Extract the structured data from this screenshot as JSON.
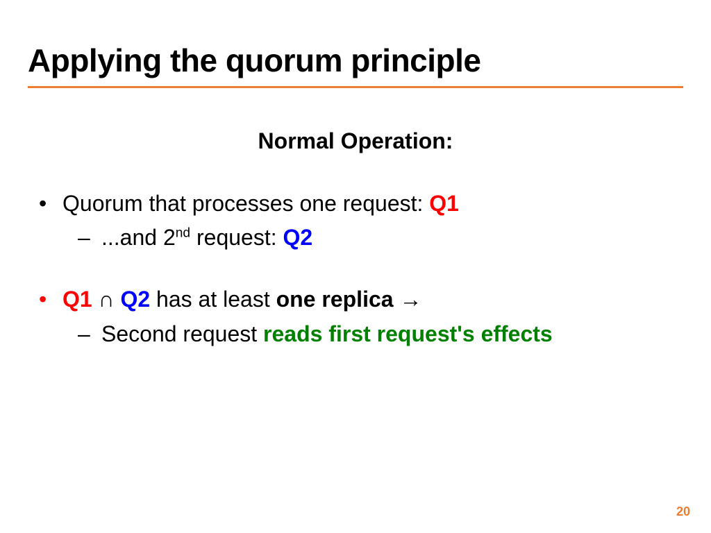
{
  "title": "Applying the quorum principle",
  "subtitle": "Normal Operation:",
  "line1_pre": "Quorum that processes one request: ",
  "line1_q1": "Q1",
  "line2_pre": "...and 2",
  "line2_sup": "nd",
  "line2_post": " request: ",
  "line2_q2": "Q2",
  "line3_q1": "Q1",
  "line3_cap": " ∩ ",
  "line3_q2": "Q2",
  "line3_mid": " has at least ",
  "line3_bold": "one replica",
  "line3_arrow": " →",
  "line4_pre": "Second request ",
  "line4_green": "reads first request's effects",
  "pagenum": "20",
  "colors": {
    "rule": "#ed7d31",
    "q1": "#ff0000",
    "q2": "#0000ff",
    "green": "#008000",
    "pagenum": "#ed7d31"
  }
}
